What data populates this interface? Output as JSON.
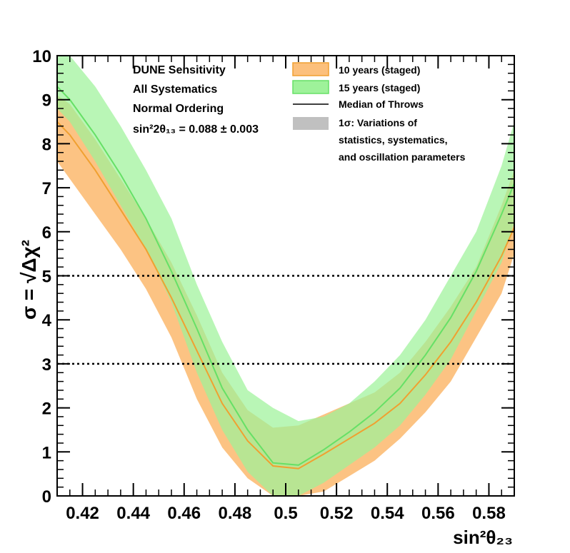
{
  "chart_data": {
    "type": "area",
    "xlabel": "sin²θ₂₃",
    "ylabel": "σ = √Δχ²",
    "xlim": [
      0.41,
      0.59
    ],
    "ylim": [
      0,
      10
    ],
    "x_ticks": [
      "0.42",
      "0.44",
      "0.46",
      "0.48",
      "0.5",
      "0.52",
      "0.54",
      "0.56",
      "0.58"
    ],
    "y_ticks": [
      "0",
      "1",
      "2",
      "3",
      "4",
      "5",
      "6",
      "7",
      "8",
      "9",
      "10"
    ],
    "reference_lines": [
      3,
      5
    ],
    "annotations": [
      "DUNE Sensitivity",
      "All Systematics",
      "Normal Ordering",
      "sin²2θ₁₃ = 0.088 ± 0.003"
    ],
    "legend_position": "top-right",
    "legend": [
      "10 years (staged)",
      "15 years (staged)",
      "Median of Throws",
      "1σ: Variations of",
      "statistics, systematics,",
      "and oscillation parameters"
    ],
    "colors": {
      "series_10_fill": "#fcc07c",
      "series_10_line": "#f0a030",
      "series_15_fill": "#9ef29a",
      "series_15_line": "#66e066",
      "variation_swatch": "#c0c0c0"
    },
    "x": [
      0.41,
      0.415,
      0.425,
      0.435,
      0.445,
      0.455,
      0.465,
      0.475,
      0.485,
      0.495,
      0.505,
      0.515,
      0.525,
      0.535,
      0.545,
      0.555,
      0.565,
      0.575,
      0.585,
      0.59
    ],
    "series": [
      {
        "name": "10 years (staged)",
        "median": [
          8.5,
          8.2,
          7.4,
          6.5,
          5.6,
          4.5,
          3.3,
          2.1,
          1.25,
          0.68,
          0.62,
          0.95,
          1.3,
          1.65,
          2.1,
          2.75,
          3.5,
          4.4,
          5.45,
          6.1
        ],
        "upper": [
          9.1,
          8.9,
          8.1,
          7.2,
          6.3,
          5.3,
          4.1,
          2.8,
          1.95,
          1.55,
          1.6,
          1.85,
          2.1,
          2.35,
          2.8,
          3.5,
          4.3,
          5.2,
          6.6,
          7.4
        ],
        "lower": [
          7.6,
          7.2,
          6.4,
          5.6,
          4.7,
          3.6,
          2.2,
          1.1,
          0.4,
          0.0,
          0.0,
          0.1,
          0.45,
          0.8,
          1.3,
          1.9,
          2.6,
          3.6,
          4.6,
          5.5
        ]
      },
      {
        "name": "15 years (staged)",
        "median": [
          9.3,
          9.0,
          8.2,
          7.3,
          6.3,
          5.1,
          3.8,
          2.45,
          1.5,
          0.75,
          0.7,
          1.05,
          1.45,
          1.9,
          2.45,
          3.2,
          4.05,
          5.1,
          6.4,
          7.1
        ],
        "upper": [
          10.0,
          10.0,
          9.3,
          8.4,
          7.4,
          6.3,
          4.8,
          3.5,
          2.4,
          2.0,
          1.7,
          1.8,
          2.1,
          2.6,
          3.2,
          4.0,
          5.0,
          6.0,
          7.5,
          8.5
        ],
        "lower": [
          8.8,
          8.5,
          7.6,
          6.6,
          5.6,
          4.4,
          2.8,
          1.5,
          0.55,
          0.0,
          0.0,
          0.3,
          0.7,
          1.1,
          1.6,
          2.3,
          3.1,
          4.2,
          5.3,
          6.2
        ]
      }
    ]
  }
}
